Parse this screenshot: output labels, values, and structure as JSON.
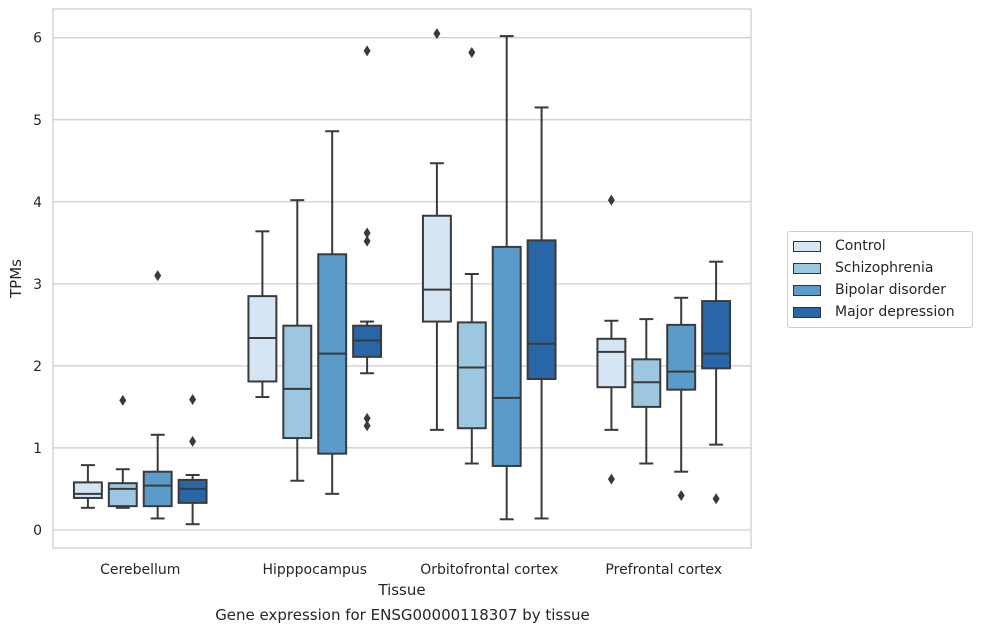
{
  "chart_data": {
    "type": "boxplot",
    "xlabel": "Tissue",
    "ylabel": "TPMs",
    "ylim": [
      -0.22,
      6.35
    ],
    "yticks": [
      0,
      1,
      2,
      3,
      4,
      5,
      6
    ],
    "grid": "horizontal",
    "legend_position": "right",
    "categories": [
      "Cerebellum",
      "Hipppocampus",
      "Orbitofrontal cortex",
      "Prefrontal cortex"
    ],
    "series": [
      {
        "name": "Control",
        "color": "#d6e5f4",
        "boxes": [
          {
            "whislo": 0.27,
            "q1": 0.39,
            "med": 0.44,
            "q3": 0.58,
            "whishi": 0.79,
            "fliers": []
          },
          {
            "whislo": 1.62,
            "q1": 1.81,
            "med": 2.34,
            "q3": 2.85,
            "whishi": 3.64,
            "fliers": []
          },
          {
            "whislo": 1.22,
            "q1": 2.54,
            "med": 2.93,
            "q3": 3.83,
            "whishi": 4.47,
            "fliers": [
              6.05
            ]
          },
          {
            "whislo": 1.22,
            "q1": 1.74,
            "med": 2.17,
            "q3": 2.33,
            "whishi": 2.55,
            "fliers": [
              4.02,
              0.62
            ]
          }
        ]
      },
      {
        "name": "Schizophrenia",
        "color": "#9dc6e0",
        "boxes": [
          {
            "whislo": 0.27,
            "q1": 0.29,
            "med": 0.5,
            "q3": 0.57,
            "whishi": 0.74,
            "fliers": [
              1.58
            ]
          },
          {
            "whislo": 0.6,
            "q1": 1.12,
            "med": 1.72,
            "q3": 2.49,
            "whishi": 4.02,
            "fliers": []
          },
          {
            "whislo": 0.81,
            "q1": 1.24,
            "med": 1.98,
            "q3": 2.53,
            "whishi": 3.12,
            "fliers": [
              5.82
            ]
          },
          {
            "whislo": 0.81,
            "q1": 1.5,
            "med": 1.8,
            "q3": 2.08,
            "whishi": 2.57,
            "fliers": []
          }
        ]
      },
      {
        "name": "Bipolar disorder",
        "color": "#5a9bca",
        "boxes": [
          {
            "whislo": 0.14,
            "q1": 0.29,
            "med": 0.54,
            "q3": 0.71,
            "whishi": 1.16,
            "fliers": [
              3.1
            ]
          },
          {
            "whislo": 0.44,
            "q1": 0.93,
            "med": 2.15,
            "q3": 3.36,
            "whishi": 4.86,
            "fliers": []
          },
          {
            "whislo": 0.13,
            "q1": 0.78,
            "med": 1.61,
            "q3": 3.45,
            "whishi": 6.02,
            "fliers": []
          },
          {
            "whislo": 0.71,
            "q1": 1.71,
            "med": 1.93,
            "q3": 2.5,
            "whishi": 2.83,
            "fliers": [
              0.42
            ]
          }
        ]
      },
      {
        "name": "Major depression",
        "color": "#2866a8",
        "boxes": [
          {
            "whislo": 0.07,
            "q1": 0.33,
            "med": 0.5,
            "q3": 0.61,
            "whishi": 0.67,
            "fliers": [
              1.59,
              1.08
            ]
          },
          {
            "whislo": 1.91,
            "q1": 2.11,
            "med": 2.31,
            "q3": 2.49,
            "whishi": 2.54,
            "fliers": [
              5.84,
              3.62,
              3.52,
              1.36,
              1.27
            ]
          },
          {
            "whislo": 0.14,
            "q1": 1.84,
            "med": 2.27,
            "q3": 3.53,
            "whishi": 5.15,
            "fliers": []
          },
          {
            "whislo": 1.04,
            "q1": 1.97,
            "med": 2.15,
            "q3": 2.79,
            "whishi": 3.27,
            "fliers": [
              0.38
            ]
          }
        ]
      }
    ]
  },
  "caption": "Gene expression for ENSG00000118307 by tissue"
}
